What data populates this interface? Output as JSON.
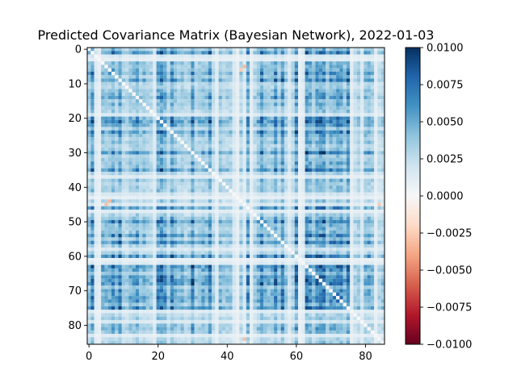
{
  "chart_data": {
    "type": "heatmap",
    "title": "Predicted Covariance Matrix (Bayesian Network), 2022-01-03",
    "xlabel": "",
    "ylabel": "",
    "matrix_size": 86,
    "xlim": [
      -0.5,
      85.5
    ],
    "ylim": [
      85.5,
      -0.5
    ],
    "x_ticks": [
      0,
      20,
      40,
      60,
      80
    ],
    "x_tick_labels": [
      "0",
      "20",
      "40",
      "60",
      "80"
    ],
    "y_ticks": [
      0,
      10,
      20,
      30,
      40,
      50,
      60,
      70,
      80
    ],
    "y_tick_labels": [
      "0",
      "10",
      "20",
      "30",
      "40",
      "50",
      "60",
      "70",
      "80"
    ],
    "colormap": "RdBu",
    "vmin": -0.01,
    "vmax": 0.01,
    "colorbar_ticks": [
      0.01,
      0.0075,
      0.005,
      0.0025,
      0.0,
      -0.0025,
      -0.005,
      -0.0075,
      -0.01
    ],
    "colorbar_tick_labels": [
      "0.0100",
      "0.0075",
      "0.0050",
      "0.0025",
      "0.0000",
      "−0.0025",
      "−0.0050",
      "−0.0075",
      "−0.0100"
    ],
    "grid": false,
    "structure": {
      "diagonal_value": 0.0,
      "typical_offdiagonal_range": [
        0.0005,
        0.009
      ],
      "high_covariance_rows_cols": [
        1,
        7,
        9,
        14,
        20,
        21,
        22,
        24,
        30,
        35,
        46,
        50,
        54,
        56,
        60,
        63,
        64,
        66,
        67,
        68,
        70,
        71,
        72,
        73,
        75
      ],
      "low_covariance_rows_cols": [
        2,
        3,
        19,
        37,
        42,
        43,
        45,
        47,
        58,
        61,
        62,
        76,
        79,
        83
      ],
      "negative_cells": [
        [
          6,
          44
        ],
        [
          44,
          6
        ],
        [
          5,
          45
        ],
        [
          45,
          5
        ],
        [
          84,
          45
        ],
        [
          45,
          84
        ]
      ]
    }
  }
}
